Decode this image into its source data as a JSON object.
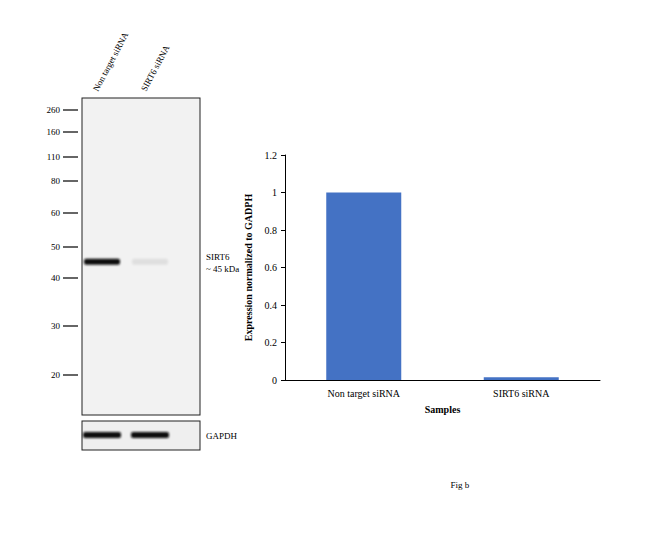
{
  "chart_data": {
    "type": "bar",
    "categories": [
      "Non target siRNA",
      "SIRT6 siRNA"
    ],
    "values": [
      1,
      0.015
    ],
    "color": "#4472c4",
    "x_label": "Samples",
    "y_label": "Expression normalized to GADPH",
    "ylim": [
      0,
      1.2
    ],
    "yticks": [
      0,
      0.2,
      0.4,
      0.6,
      0.8,
      1,
      1.2
    ],
    "grid": false
  },
  "blot": {
    "lanes": [
      "Non target siRNA",
      "SIRT6 siRNA"
    ],
    "markers_kda": [
      260,
      160,
      110,
      80,
      60,
      50,
      40,
      30,
      20
    ],
    "target_label": "SIRT6",
    "target_kda": 45,
    "target_size_label": "~ 45 kDa",
    "loading_control": "GAPDH"
  },
  "caption": "Fig b"
}
